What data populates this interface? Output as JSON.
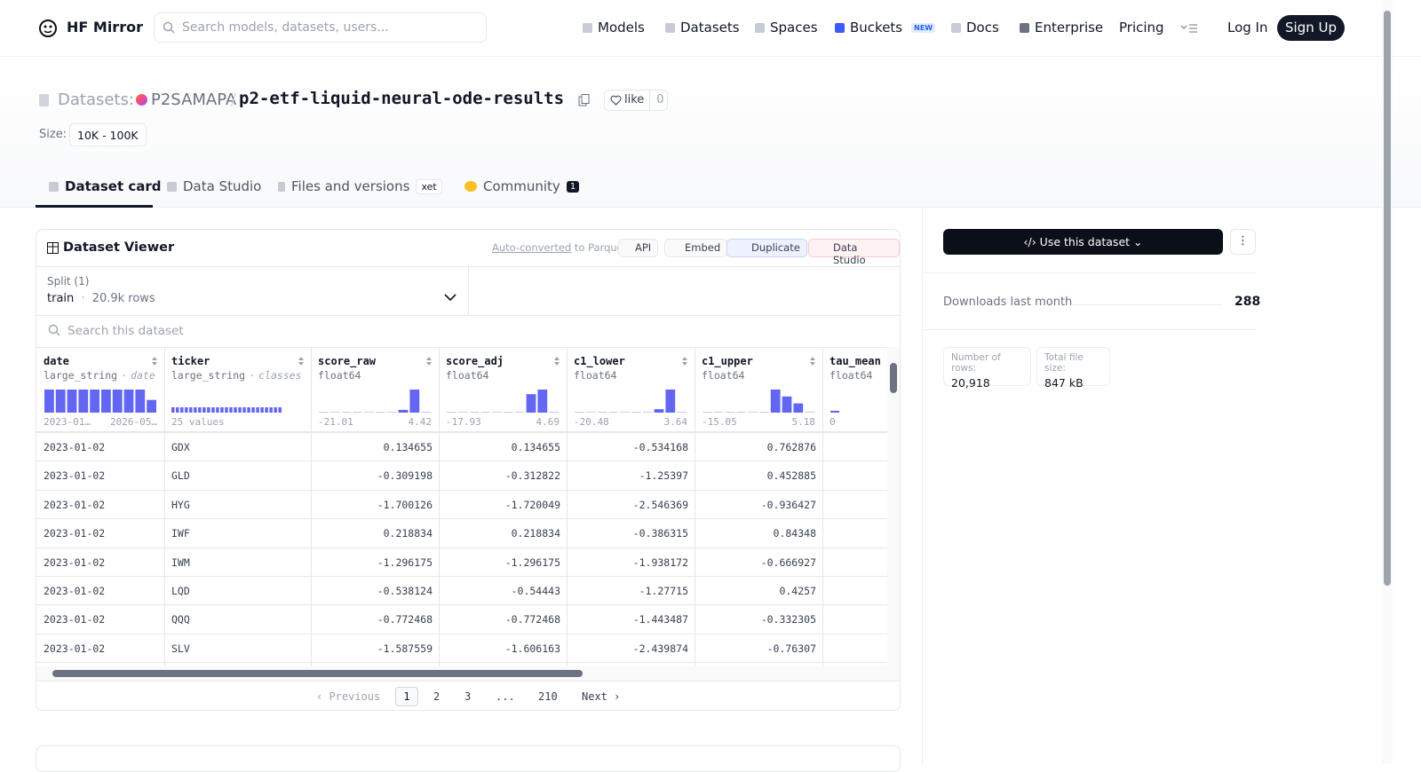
{
  "nav": {
    "brand": "HF Mirror",
    "search_placeholder": "Search models, datasets, users...",
    "links": [
      "Models",
      "Datasets",
      "Spaces",
      "Buckets",
      "Docs",
      "Enterprise",
      "Pricing"
    ],
    "buckets_badge": "NEW",
    "login": "Log In",
    "signup": "Sign Up"
  },
  "header": {
    "prefix": "Datasets:",
    "owner": "P2SAMAPA",
    "separator": "/",
    "name": "p2-etf-liquid-neural-ode-results",
    "like": "like",
    "like_count": 0,
    "size_label": "Size:",
    "size": "10K - 100K"
  },
  "tabs": [
    {
      "label": "Dataset card"
    },
    {
      "label": "Data Studio"
    },
    {
      "label": "Files and versions",
      "badge": "xet"
    },
    {
      "label": "Community",
      "badge": 1
    }
  ],
  "viewer": {
    "title": "Dataset Viewer",
    "auto_converted": "Auto-converted",
    "to_parquet": "to Parquet",
    "actions": [
      "API",
      "Embed",
      "Duplicate",
      "Data Studio"
    ],
    "split_label": "Split (1)",
    "split": "train",
    "meta_separator": "·",
    "row_count": "20.9k rows",
    "search_placeholder": "Search this dataset",
    "columns": [
      {
        "name": "date",
        "dtype": "large_string",
        "kind": "date",
        "hist": [
          100,
          100,
          100,
          100,
          100,
          100,
          100,
          100,
          100,
          55
        ],
        "min": "2023-01…",
        "max": "2026-05…"
      },
      {
        "name": "ticker",
        "dtype": "large_string",
        "kind": "classes",
        "hist": [
          4,
          4,
          4,
          4,
          4,
          4,
          4,
          4,
          4,
          4,
          4,
          4,
          4,
          4,
          4,
          4,
          4,
          4,
          4,
          4,
          4,
          4,
          4,
          4,
          4
        ],
        "classes_label": "25 values"
      },
      {
        "name": "score_raw",
        "dtype": "float64",
        "hist": [
          3,
          3,
          3,
          3,
          3,
          3,
          3,
          12,
          100,
          3
        ],
        "min": -21.01,
        "max": 4.42
      },
      {
        "name": "score_adj",
        "dtype": "float64",
        "hist": [
          3,
          3,
          3,
          3,
          3,
          3,
          3,
          80,
          100,
          3
        ],
        "min": -17.93,
        "max": 4.69
      },
      {
        "name": "c1_lower",
        "dtype": "float64",
        "hist": [
          3,
          3,
          3,
          3,
          3,
          3,
          3,
          15,
          100,
          3
        ],
        "min": -20.48,
        "max": 3.64
      },
      {
        "name": "c1_upper",
        "dtype": "float64",
        "hist": [
          3,
          3,
          3,
          3,
          3,
          3,
          100,
          70,
          40,
          3
        ],
        "min": -15.05,
        "max": 5.18
      },
      {
        "name": "tau_mean",
        "dtype": "float64",
        "hist": [
          8
        ],
        "min": 0
      }
    ],
    "rows": [
      [
        "2023-01-02",
        "GDX",
        0.134655,
        0.134655,
        -0.534168,
        0.762876
      ],
      [
        "2023-01-02",
        "GLD",
        -0.309198,
        -0.312822,
        -1.25397,
        0.452885
      ],
      [
        "2023-01-02",
        "HYG",
        -1.700126,
        -1.720049,
        -2.546369,
        -0.936427
      ],
      [
        "2023-01-02",
        "IWF",
        0.218834,
        0.218834,
        -0.386315,
        0.84348
      ],
      [
        "2023-01-02",
        "IWM",
        -1.296175,
        -1.296175,
        -1.938172,
        -0.666927
      ],
      [
        "2023-01-02",
        "LQD",
        -0.538124,
        -0.54443,
        -1.27715,
        0.4257
      ],
      [
        "2023-01-02",
        "QQQ",
        -0.772468,
        -0.772468,
        -1.443487,
        -0.332305
      ],
      [
        "2023-01-02",
        "SLV",
        -1.587559,
        -1.606163,
        -2.439874,
        -0.76307
      ]
    ],
    "pagination": {
      "previous": "Previous",
      "pages": [
        "1",
        "2",
        "3",
        "...",
        "210"
      ],
      "next": "Next"
    }
  },
  "sidebar": {
    "use": "Use this dataset",
    "downloads_label": "Downloads last month",
    "downloads": 288,
    "stats": [
      {
        "label": "Number of rows:",
        "value": "20,918"
      },
      {
        "label": "Total file size:",
        "value": "847 kB"
      }
    ]
  }
}
